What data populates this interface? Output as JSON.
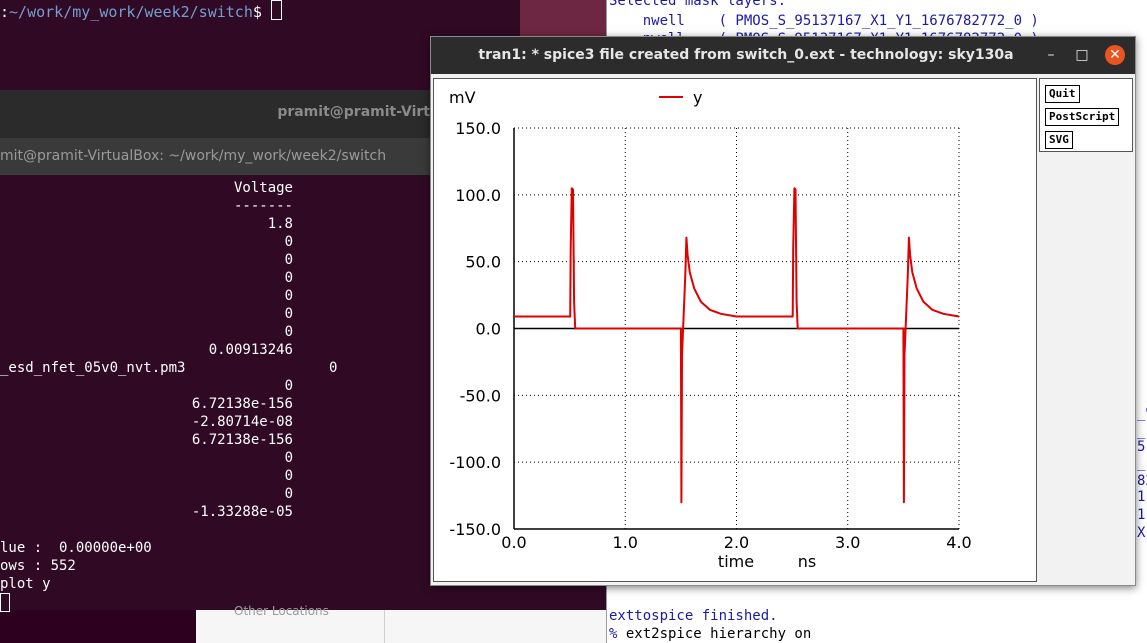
{
  "top_terminal": {
    "prompt_tail": ":",
    "path": "~/work/my_work/week2/switch",
    "suffix": "$ "
  },
  "main_terminal": {
    "window_title": "pramit@pramit-VirtualBox: ~/work/my_work/week2/switch",
    "tab_title": "mit@pramit-VirtualBox: ~/work/my_work/week2/switch",
    "titlebar_visible": "pramit@pramit-Virt",
    "lines": {
      "l0": "Voltage",
      "l1": "-------",
      "l2": "1.8",
      "l3": "0",
      "l4": "0",
      "l5": "0",
      "l6": "0",
      "l7": "0",
      "l8": "0",
      "l9": "0.00913246",
      "l10_name": "_esd_nfet_05v0_nvt.pm3",
      "l10_val": "0",
      "l11": "0",
      "l12": "6.72138e-156",
      "l13": "-2.80714e-08",
      "l14": "6.72138e-156",
      "l15": "0",
      "l16": "0",
      "l17": "0",
      "l18": "-1.33288e-05",
      "value_line": "lue :  0.00000e+00",
      "rows_line": "ows : 552",
      "plot_line": "plot y"
    }
  },
  "file_manager": {
    "label": "Other Locations"
  },
  "console": {
    "lines": {
      "c0": "Selected mask layers:",
      "c1": "    nwell    ( PMOS_S_95137167_X1_Y1_1676782772_0 )",
      "c2": "    nwell    ( PMOS_S_95137167_X1_Y1_1676782772_0 )",
      "c3": "exttospice finished.",
      "c4_prefix": "% ",
      "c4": "ext2spice hierarchy on"
    },
    "edge_glyphs": [
      "_9",
      "_",
      "5",
      "_",
      "82",
      "1",
      "1",
      "X"
    ]
  },
  "plot_window": {
    "title": "tran1: * spice3 file created from switch_0.ext - technology: sky130a",
    "buttons": {
      "quit": "Quit",
      "postscript": "PostScript",
      "svg": "SVG"
    },
    "controls": {
      "minimize": "–",
      "maximize": "□",
      "close": "✕"
    }
  },
  "chart_data": {
    "type": "line",
    "ylabel_unit": "mV",
    "xlabel": "time",
    "xunit": "ns",
    "xlim": [
      0.0,
      4.0
    ],
    "ylim": [
      -150.0,
      150.0
    ],
    "x_ticks": [
      "0.0",
      "1.0",
      "2.0",
      "3.0",
      "4.0"
    ],
    "y_ticks": [
      "150.0",
      "100.0",
      "50.0",
      "0.0",
      "-50.0",
      "-100.0",
      "-150.0"
    ],
    "grid": true,
    "legend_position": "top-center",
    "series_color": "#e00000",
    "series": [
      {
        "name": "y",
        "x": [
          0.0,
          0.5,
          0.505,
          0.51,
          0.52,
          0.53,
          0.54,
          0.55,
          0.56,
          1.5,
          1.505,
          1.51,
          1.52,
          1.54,
          1.55,
          1.56,
          1.58,
          1.62,
          1.68,
          1.76,
          1.86,
          2.0,
          2.1,
          2.3,
          2.5,
          2.505,
          2.51,
          2.52,
          2.53,
          2.54,
          2.55,
          2.56,
          3.5,
          3.505,
          3.51,
          3.52,
          3.54,
          3.55,
          3.56,
          3.58,
          3.62,
          3.68,
          3.76,
          3.86,
          4.0
        ],
        "y": [
          9.0,
          9.0,
          9.0,
          60.0,
          105.0,
          104.0,
          20.0,
          0.0,
          0.0,
          0.0,
          -130.0,
          -20.0,
          0.0,
          40.0,
          68.0,
          55.0,
          42.0,
          30.0,
          20.0,
          14.0,
          11.0,
          9.0,
          9.0,
          9.0,
          9.0,
          9.0,
          60.0,
          105.0,
          104.0,
          20.0,
          0.0,
          0.0,
          0.0,
          -130.0,
          -20.0,
          0.0,
          40.0,
          68.0,
          55.0,
          42.0,
          30.0,
          20.0,
          14.0,
          11.0,
          9.0
        ]
      }
    ]
  }
}
